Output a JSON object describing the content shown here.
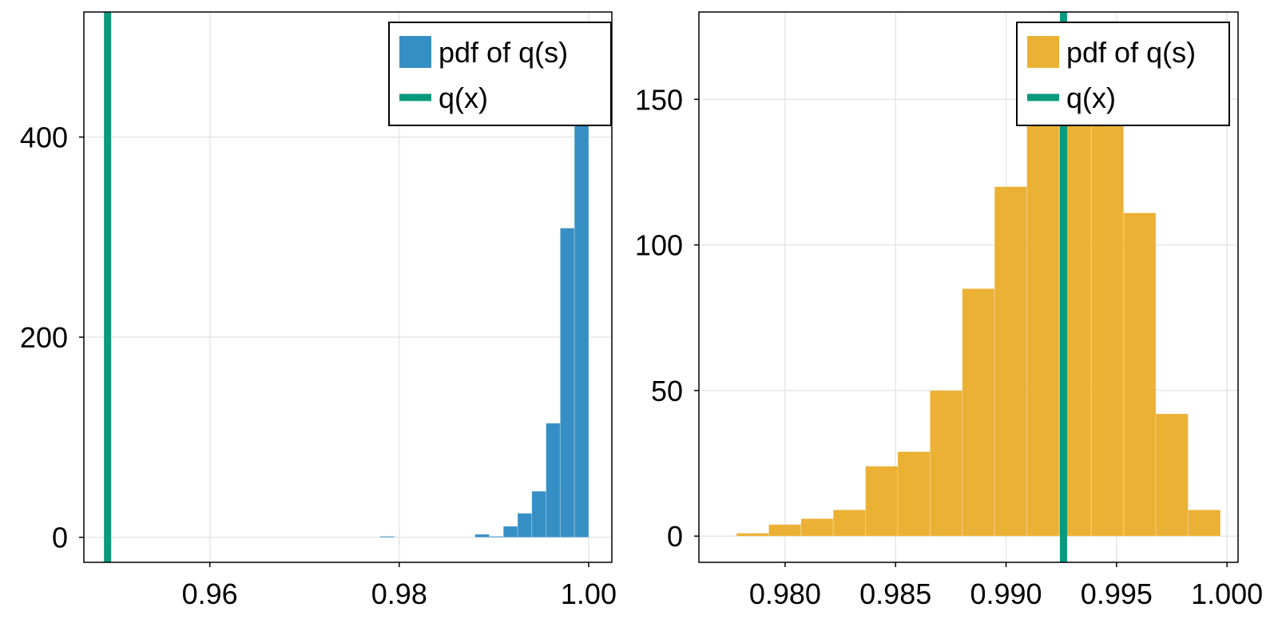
{
  "chart_data": [
    {
      "type": "bar",
      "title": "",
      "xlabel": "",
      "ylabel": "",
      "xlim": [
        0.9467,
        1.00245
      ],
      "ylim": [
        -25,
        525
      ],
      "grid": true,
      "xticks": [
        0.96,
        0.98,
        1.0
      ],
      "xtick_labels": [
        "0.96",
        "0.98",
        "1.00"
      ],
      "yticks": [
        0,
        200,
        400
      ],
      "ytick_labels": [
        "0",
        "200",
        "400"
      ],
      "bar_color": "#368fc4",
      "line_color": "#0a9a7e",
      "bins": [
        {
          "x0": 0.978,
          "x1": 0.9795,
          "value": 1
        },
        {
          "x0": 0.988,
          "x1": 0.9895,
          "value": 3
        },
        {
          "x0": 0.9895,
          "x1": 0.991,
          "value": 1
        },
        {
          "x0": 0.991,
          "x1": 0.9925,
          "value": 11
        },
        {
          "x0": 0.9925,
          "x1": 0.994,
          "value": 24
        },
        {
          "x0": 0.994,
          "x1": 0.9955,
          "value": 46
        },
        {
          "x0": 0.9955,
          "x1": 0.997,
          "value": 114
        },
        {
          "x0": 0.997,
          "x1": 0.9985,
          "value": 309
        },
        {
          "x0": 0.9985,
          "x1": 1.0,
          "value": 500
        }
      ],
      "vline": 0.9492,
      "legend": {
        "position": "top-right",
        "entries": [
          "pdf of q(s)",
          "q(x)"
        ]
      }
    },
    {
      "type": "bar",
      "title": "",
      "xlabel": "",
      "ylabel": "",
      "xlim": [
        0.9761,
        1.0005
      ],
      "ylim": [
        -9,
        180
      ],
      "grid": true,
      "xticks": [
        0.98,
        0.985,
        0.99,
        0.995,
        1.0
      ],
      "xtick_labels": [
        "0.980",
        "0.985",
        "0.990",
        "0.995",
        "1.000"
      ],
      "yticks": [
        0,
        50,
        100,
        150
      ],
      "ytick_labels": [
        "0",
        "50",
        "100",
        "150"
      ],
      "bar_color": "#ebb134",
      "line_color": "#0a9a7e",
      "bin_start": 0.9778,
      "bin_width": 0.00146,
      "values": [
        1,
        4,
        6,
        9,
        24,
        29,
        50,
        85,
        120,
        155,
        176,
        150,
        111,
        42,
        9
      ],
      "vline": 0.9926,
      "legend": {
        "position": "top-right",
        "entries": [
          "pdf of q(s)",
          "q(x)"
        ]
      }
    }
  ]
}
